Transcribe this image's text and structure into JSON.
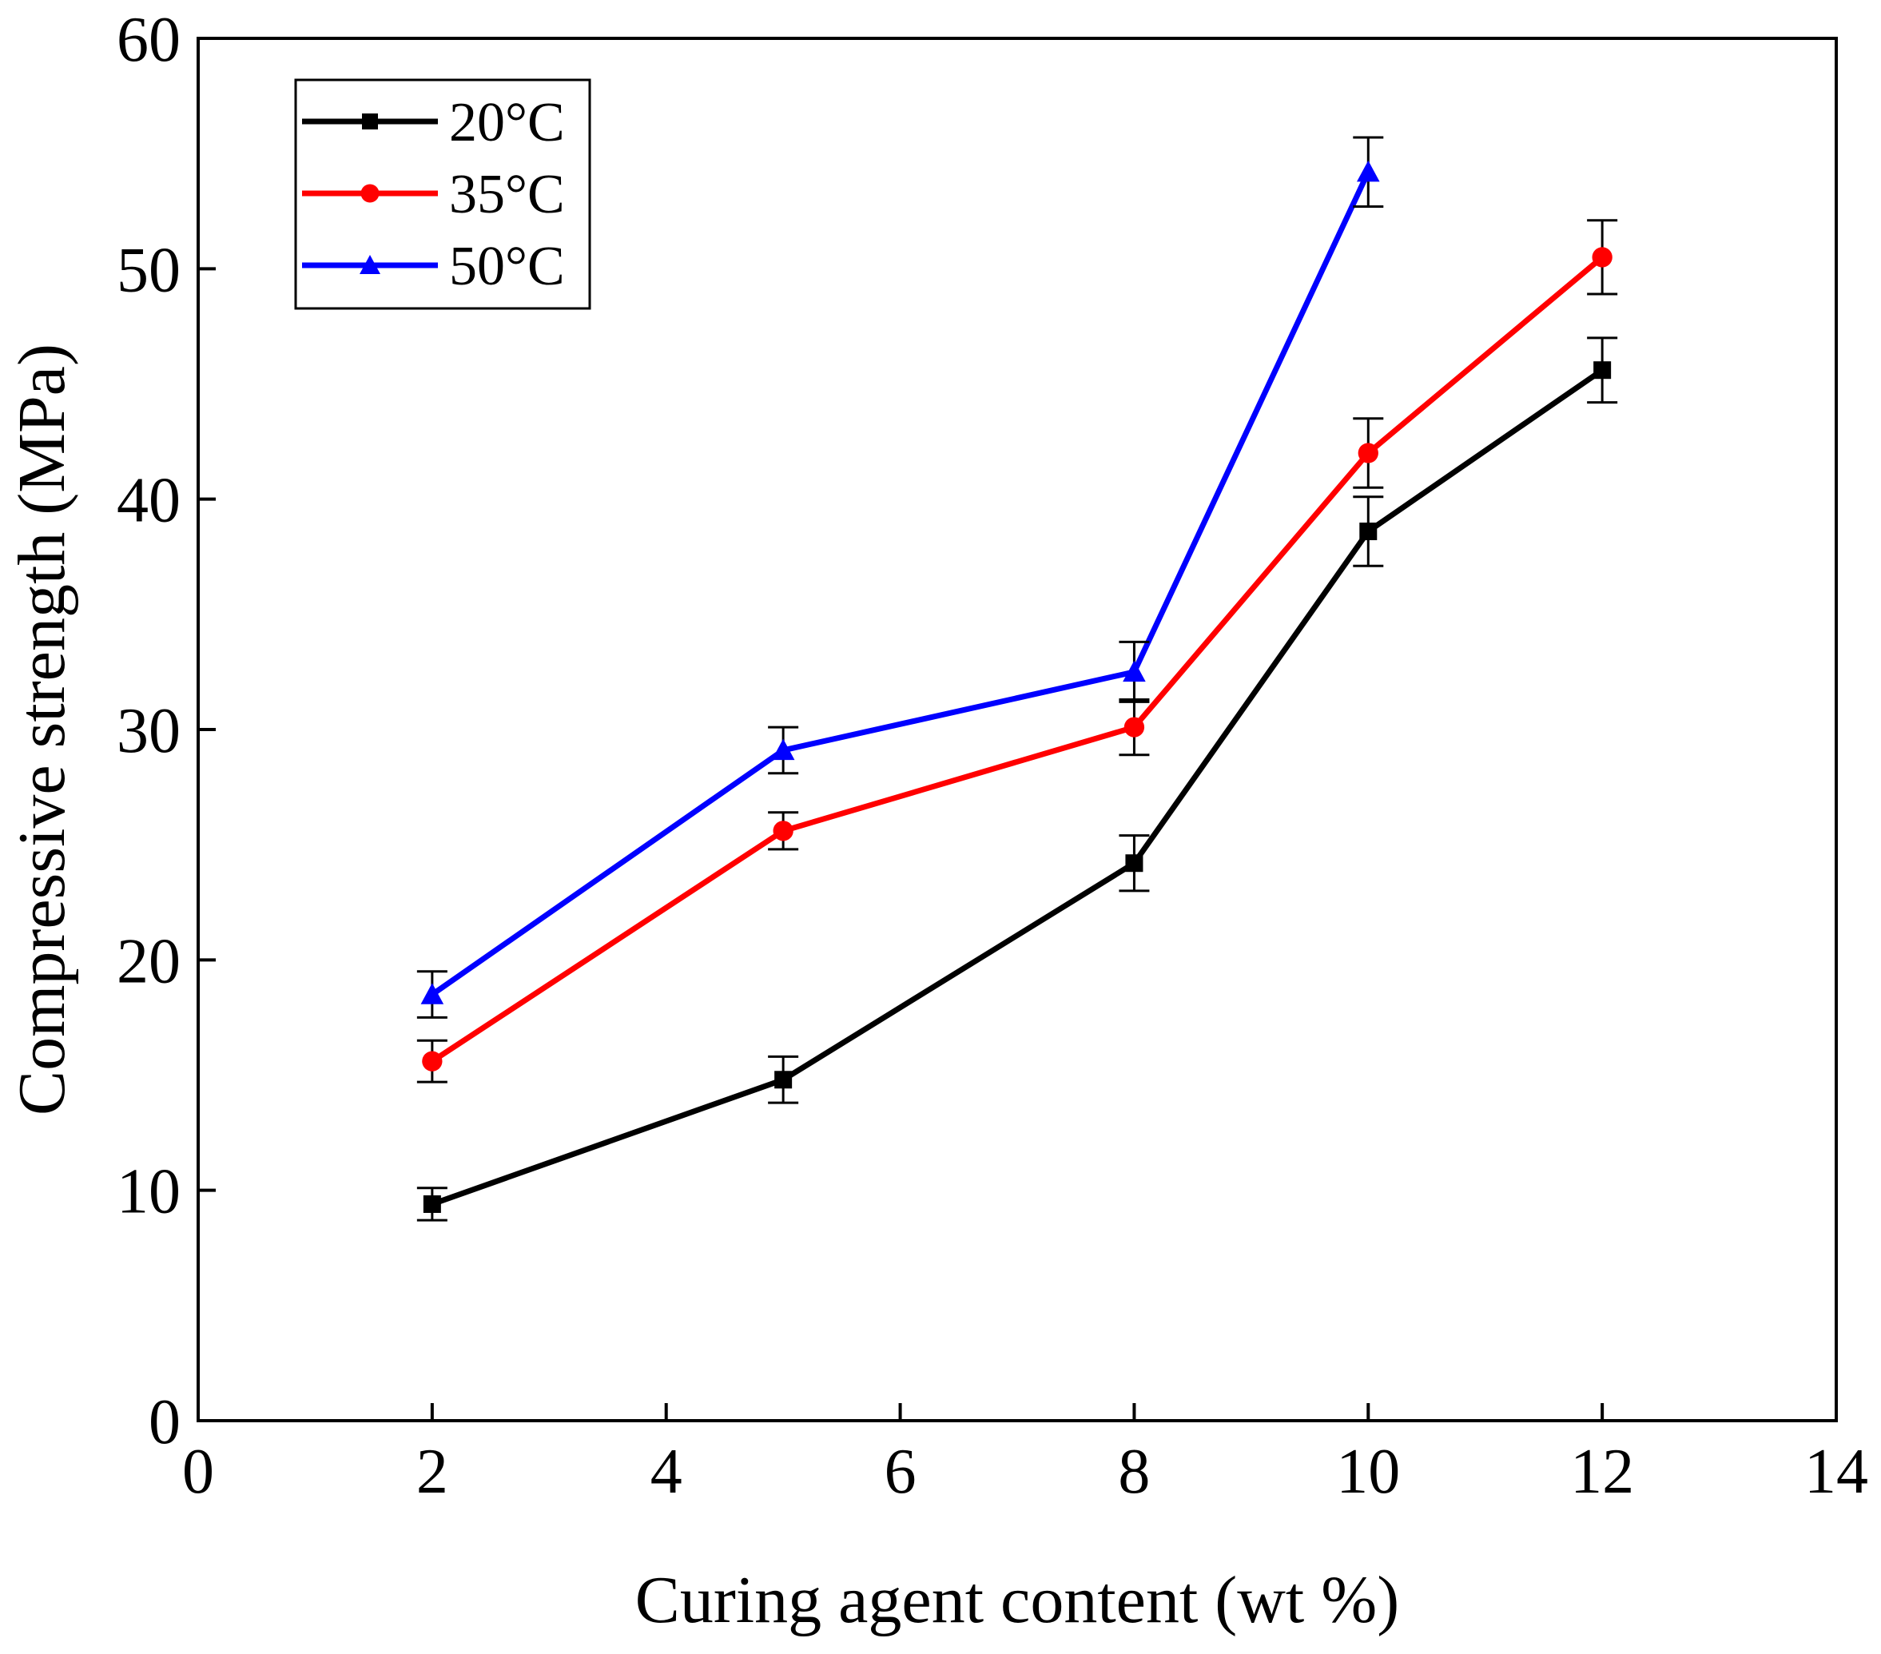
{
  "chart_data": {
    "type": "line",
    "title": "",
    "xlabel": "Curing agent content (wt %)",
    "ylabel": "Compressive strength (MPa)",
    "xlim": [
      0,
      14
    ],
    "ylim": [
      0,
      60
    ],
    "xticks": [
      0,
      2,
      4,
      6,
      8,
      10,
      12,
      14
    ],
    "yticks": [
      0,
      10,
      20,
      30,
      40,
      50,
      60
    ],
    "xtick_labels": [
      "0",
      "2",
      "4",
      "6",
      "8",
      "10",
      "12",
      "14"
    ],
    "ytick_labels": [
      "0",
      "10",
      "20",
      "30",
      "40",
      "50",
      "60"
    ],
    "grid": false,
    "legend_position": "top-left",
    "series": [
      {
        "name": "20°C",
        "color": "#000000",
        "marker": "square",
        "x": [
          2,
          5,
          8,
          10,
          12
        ],
        "values": [
          9.4,
          14.8,
          24.2,
          38.6,
          45.6
        ],
        "errors": [
          0.7,
          1.0,
          1.2,
          1.5,
          1.4
        ]
      },
      {
        "name": "35°C",
        "color": "#ff0000",
        "marker": "circle",
        "x": [
          2,
          5,
          8,
          10,
          12
        ],
        "values": [
          15.6,
          25.6,
          30.1,
          42.0,
          50.5
        ],
        "errors": [
          0.9,
          0.8,
          1.2,
          1.5,
          1.6
        ]
      },
      {
        "name": "50°C",
        "color": "#0000ff",
        "marker": "triangle",
        "x": [
          2,
          5,
          8,
          10
        ],
        "values": [
          18.5,
          29.1,
          32.5,
          54.2
        ],
        "errors": [
          1.0,
          1.0,
          1.3,
          1.5
        ]
      }
    ]
  }
}
